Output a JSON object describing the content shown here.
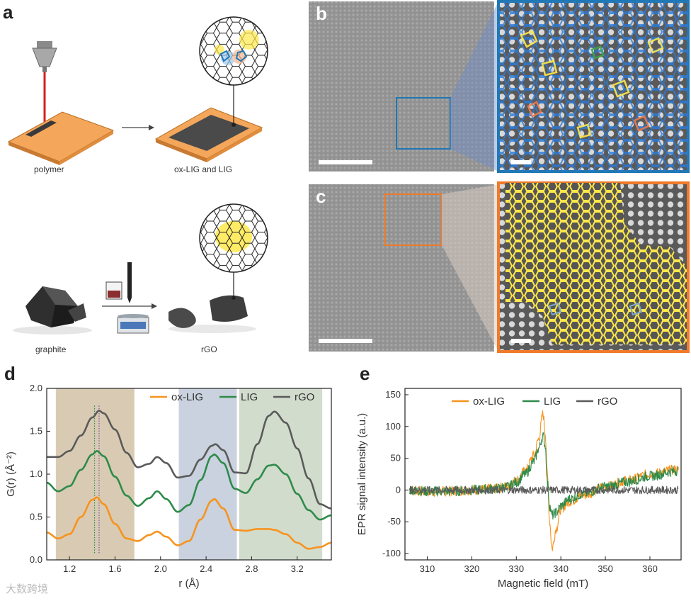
{
  "panel_a": {
    "label": "a",
    "caption_polymer": "polymer",
    "caption_oxlig": "ox-LIG and LIG",
    "caption_graphite": "graphite",
    "caption_rgo": "rGO"
  },
  "panel_b": {
    "label": "b"
  },
  "panel_c": {
    "label": "c"
  },
  "watermark": "大数跨境",
  "colors": {
    "orange": "#f7931e",
    "green": "#2e8b4a",
    "gray": "#5a5a5a",
    "blue": "#1f78b4",
    "yellow": "#ffe84a",
    "polymer": "#f4a65a"
  },
  "chart_data": [
    {
      "id": "d",
      "label": "d",
      "type": "line",
      "xlabel": "r (Å)",
      "ylabel": "G(r) (Å⁻²)",
      "xlim": [
        1.0,
        3.5
      ],
      "ylim": [
        0.0,
        2.0
      ],
      "xticks": [
        "1.2",
        "1.6",
        "2.0",
        "2.4",
        "2.8",
        "3.2"
      ],
      "xtick_values": [
        1.2,
        1.6,
        2.0,
        2.4,
        2.8,
        3.2
      ],
      "yticks": [
        "0.0",
        "0.5",
        "1.0",
        "1.5",
        "2.0"
      ],
      "ytick_values": [
        0.0,
        0.5,
        1.0,
        1.5,
        2.0
      ],
      "shaded_regions": [
        {
          "x0": 1.08,
          "x1": 1.77,
          "color": "#d9cbb3"
        },
        {
          "x0": 2.16,
          "x1": 2.67,
          "color": "#c9d2de"
        },
        {
          "x0": 2.69,
          "x1": 3.42,
          "color": "#d2dccd"
        }
      ],
      "dotted_lines": [
        {
          "x": 1.42,
          "color": "#2e8b4a"
        },
        {
          "x": 1.46,
          "color": "#7a4fa0"
        }
      ],
      "legend": [
        "ox-LIG",
        "LIG",
        "rGO"
      ],
      "series": [
        {
          "name": "rGO",
          "color": "#5a5a5a",
          "x": [
            1.0,
            1.1,
            1.2,
            1.3,
            1.4,
            1.46,
            1.5,
            1.6,
            1.7,
            1.8,
            1.9,
            1.97,
            2.05,
            2.15,
            2.25,
            2.35,
            2.45,
            2.48,
            2.55,
            2.65,
            2.75,
            2.85,
            2.95,
            3.0,
            3.1,
            3.2,
            3.3,
            3.4,
            3.5
          ],
          "y": [
            1.2,
            1.2,
            1.27,
            1.45,
            1.66,
            1.74,
            1.71,
            1.52,
            1.25,
            1.08,
            1.12,
            1.2,
            1.13,
            0.96,
            0.98,
            1.17,
            1.33,
            1.35,
            1.28,
            1.02,
            1.01,
            1.35,
            1.68,
            1.73,
            1.6,
            1.3,
            0.95,
            0.65,
            0.6
          ]
        },
        {
          "name": "LIG",
          "color": "#2e8b4a",
          "x": [
            1.0,
            1.1,
            1.2,
            1.3,
            1.4,
            1.44,
            1.5,
            1.6,
            1.7,
            1.8,
            1.9,
            1.97,
            2.05,
            2.15,
            2.25,
            2.35,
            2.45,
            2.47,
            2.55,
            2.65,
            2.75,
            2.85,
            2.95,
            3.0,
            3.1,
            3.2,
            3.3,
            3.4,
            3.5
          ],
          "y": [
            0.9,
            0.8,
            0.86,
            1.05,
            1.23,
            1.27,
            1.21,
            0.97,
            0.75,
            0.63,
            0.72,
            0.8,
            0.71,
            0.56,
            0.64,
            0.93,
            1.21,
            1.23,
            1.13,
            0.83,
            0.78,
            0.94,
            1.1,
            1.11,
            1.0,
            0.77,
            0.58,
            0.47,
            0.52
          ]
        },
        {
          "name": "ox-LIG",
          "color": "#f7931e",
          "x": [
            1.0,
            1.1,
            1.2,
            1.3,
            1.4,
            1.44,
            1.5,
            1.6,
            1.7,
            1.8,
            1.9,
            1.97,
            2.05,
            2.15,
            2.25,
            2.35,
            2.45,
            2.47,
            2.55,
            2.65,
            2.75,
            2.85,
            2.95,
            3.0,
            3.1,
            3.2,
            3.3,
            3.4,
            3.5
          ],
          "y": [
            0.32,
            0.25,
            0.3,
            0.5,
            0.7,
            0.73,
            0.65,
            0.42,
            0.25,
            0.22,
            0.29,
            0.33,
            0.27,
            0.17,
            0.22,
            0.47,
            0.69,
            0.71,
            0.6,
            0.35,
            0.34,
            0.36,
            0.36,
            0.35,
            0.3,
            0.2,
            0.13,
            0.15,
            0.2
          ]
        }
      ]
    },
    {
      "id": "e",
      "label": "e",
      "type": "line",
      "xlabel": "Magnetic field (mT)",
      "ylabel": "EPR signal intensity (a.u.)",
      "xlim": [
        305,
        367
      ],
      "ylim": [
        -110,
        160
      ],
      "xticks": [
        "310",
        "320",
        "330",
        "340",
        "350",
        "360"
      ],
      "xtick_values": [
        310,
        320,
        330,
        340,
        350,
        360
      ],
      "yticks": [
        "-100",
        "-50",
        "0",
        "50",
        "100",
        "150"
      ],
      "ytick_values": [
        -100,
        -50,
        0,
        50,
        100,
        150
      ],
      "legend": [
        "ox-LIG",
        "LIG",
        "rGO"
      ],
      "series": [
        {
          "name": "ox-LIG",
          "color": "#f7931e",
          "noise": 8,
          "x": [
            306,
            310,
            315,
            320,
            325,
            328,
            330,
            332,
            334,
            335,
            336,
            336.5,
            337,
            337.5,
            338,
            339,
            340,
            342,
            345,
            350,
            355,
            360,
            366
          ],
          "y": [
            0,
            -3,
            -2,
            0,
            2,
            6,
            15,
            30,
            55,
            80,
            120,
            90,
            20,
            -50,
            -92,
            -60,
            -30,
            -18,
            -8,
            5,
            15,
            25,
            32
          ]
        },
        {
          "name": "LIG",
          "color": "#2e8b4a",
          "noise": 8,
          "x": [
            306,
            310,
            315,
            320,
            325,
            328,
            330,
            332,
            334,
            335,
            336,
            336.5,
            337,
            337.5,
            338,
            339,
            340,
            342,
            345,
            350,
            355,
            360,
            366
          ],
          "y": [
            0,
            -2,
            -2,
            0,
            2,
            5,
            12,
            25,
            45,
            65,
            85,
            70,
            10,
            -25,
            -40,
            -35,
            -25,
            -14,
            -6,
            5,
            13,
            22,
            30
          ]
        },
        {
          "name": "rGO",
          "color": "#5a5a5a",
          "noise": 6,
          "x": [
            306,
            315,
            325,
            335,
            340,
            345,
            355,
            366
          ],
          "y": [
            0,
            0,
            0,
            0,
            0,
            0,
            0,
            0
          ]
        }
      ]
    }
  ]
}
